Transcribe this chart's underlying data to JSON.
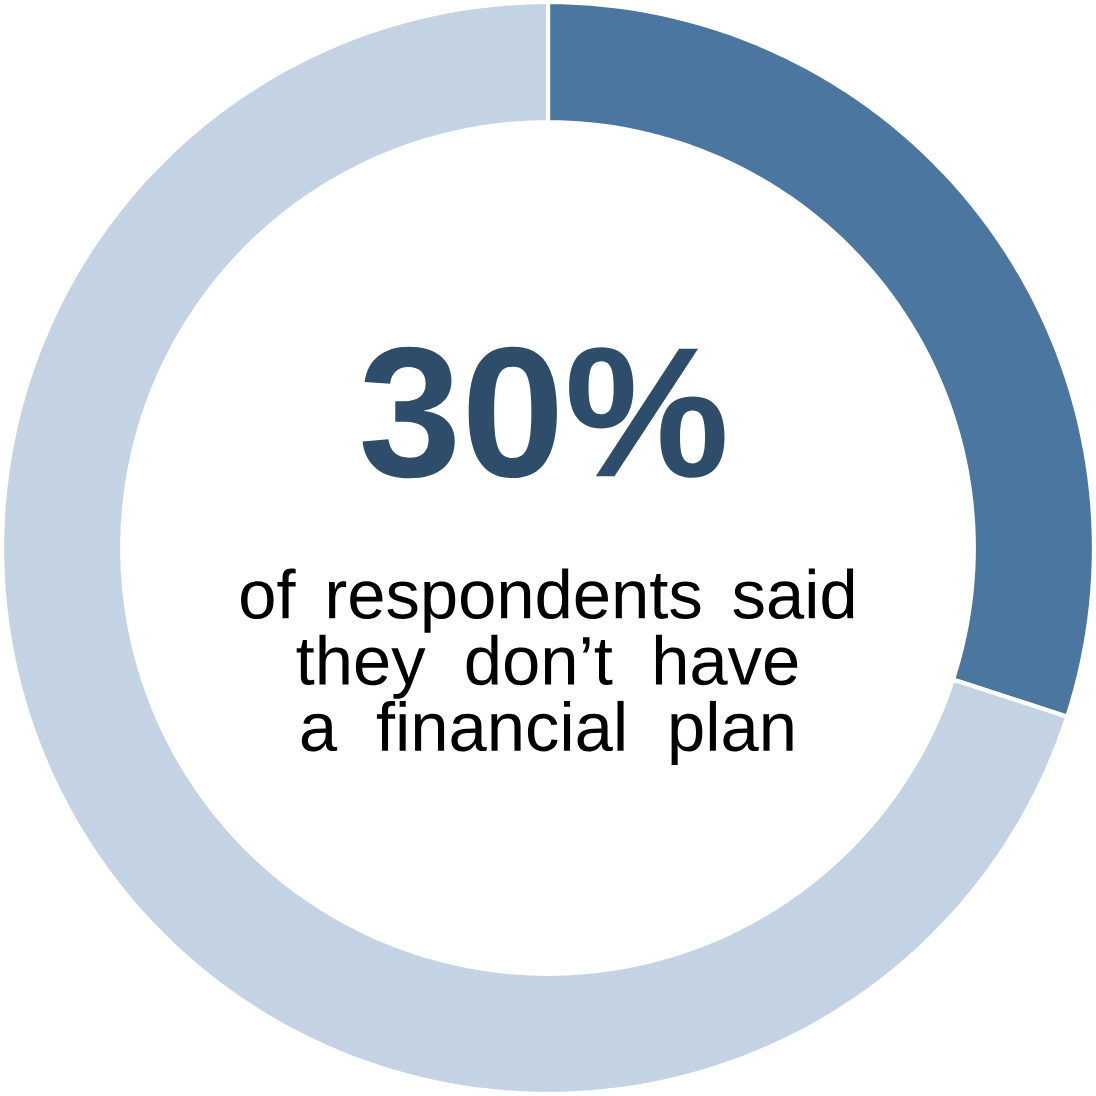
{
  "chart_data": {
    "type": "donut",
    "categories": [
      null,
      null
    ],
    "values": [
      30,
      70
    ],
    "colors": [
      "#4a76a0",
      "#c3d3e3"
    ],
    "annotations": [
      "30%",
      "of respondents said they don’t have a financial plan"
    ]
  }
}
